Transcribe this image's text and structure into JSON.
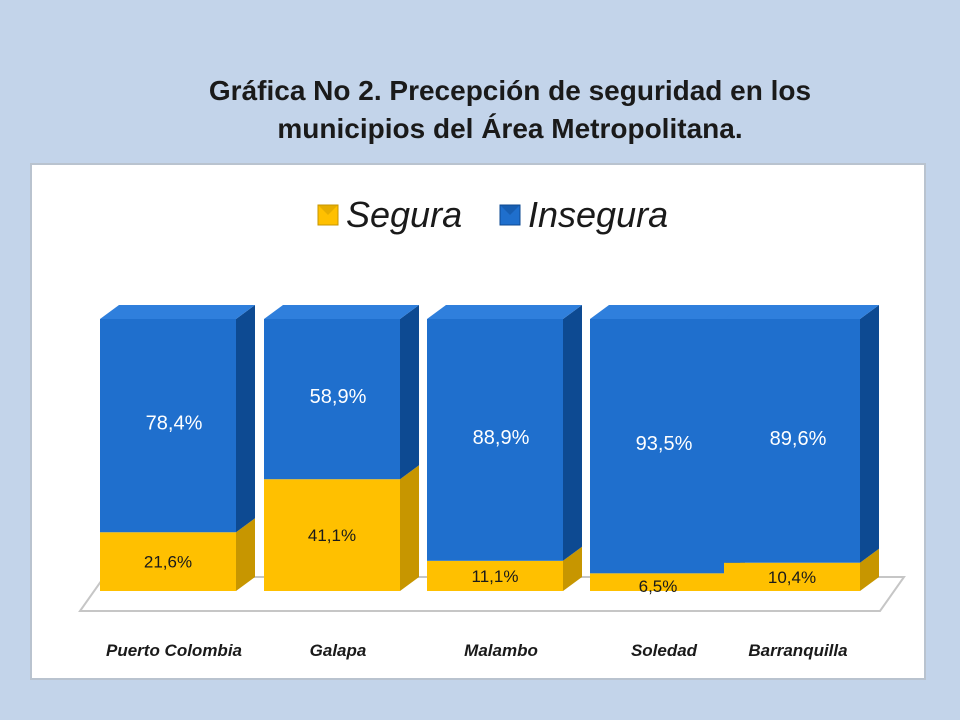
{
  "title": {
    "line1": "Gráfica No 2. Precepción de seguridad en los",
    "line2": "municipios del Área Metropolitana."
  },
  "colors": {
    "segura": "#ffc000",
    "segura_dark": "#c79600",
    "insegura": "#1f6fcd",
    "insegura_dark": "#0d4a92"
  },
  "chart_data": {
    "type": "bar",
    "stacked": true,
    "percent": true,
    "title": "Gráfica No 2. Precepción de seguridad en los municipios del Área Metropolitana.",
    "categories": [
      "Puerto Colombia",
      "Galapa",
      "Malambo",
      "Soledad",
      "Barranquilla"
    ],
    "series": [
      {
        "name": "Segura",
        "values": [
          21.6,
          41.1,
          11.1,
          6.5,
          10.4
        ],
        "labels": [
          "21,6%",
          "41,1%",
          "11,1%",
          "6,5%",
          "10,4%"
        ]
      },
      {
        "name": "Insegura",
        "values": [
          78.4,
          58.9,
          88.9,
          93.5,
          89.6
        ],
        "labels": [
          "78,4%",
          "58,9%",
          "88,9%",
          "93,5%",
          "89,6%"
        ]
      }
    ],
    "ylim": [
      0,
      100
    ],
    "legend_position": "top",
    "grid": false
  }
}
